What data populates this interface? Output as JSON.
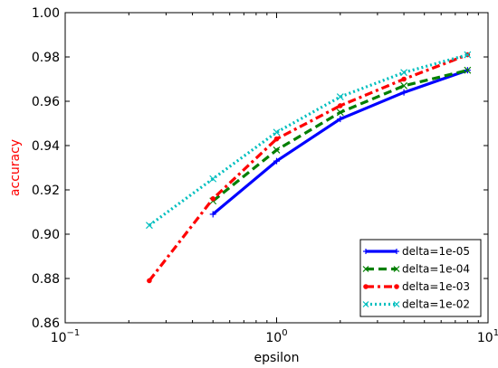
{
  "chart_data": {
    "type": "line",
    "xlabel": "epsilon",
    "ylabel": "accuracy",
    "xscale": "log",
    "xlim": [
      0.1,
      10
    ],
    "ylim": [
      0.86,
      1.0
    ],
    "x_tick_labels": [
      {
        "value": 0.1,
        "base": "10",
        "exp": "−1"
      },
      {
        "value": 1,
        "base": "10",
        "exp": "0"
      },
      {
        "value": 10,
        "base": "10",
        "exp": "1"
      }
    ],
    "y_ticks": [
      0.86,
      0.88,
      0.9,
      0.92,
      0.94,
      0.96,
      0.98,
      1.0
    ],
    "y_tick_labels": [
      "0.86",
      "0.88",
      "0.90",
      "0.92",
      "0.94",
      "0.96",
      "0.98",
      "1.00"
    ],
    "legend_position": "lower-right",
    "grid": false,
    "series": [
      {
        "name": "delta=1e-05",
        "color": "#0000ff",
        "style": "solid",
        "marker": "+",
        "x": [
          0.5,
          1,
          2,
          4,
          8
        ],
        "y": [
          0.909,
          0.933,
          0.952,
          0.964,
          0.974
        ]
      },
      {
        "name": "delta=1e-04",
        "color": "#007f00",
        "style": "dashed",
        "marker": "x",
        "x": [
          0.5,
          1,
          2,
          4,
          8
        ],
        "y": [
          0.915,
          0.938,
          0.955,
          0.967,
          0.974
        ]
      },
      {
        "name": "delta=1e-03",
        "color": "#ff0000",
        "style": "dashdot",
        "marker": "o",
        "x": [
          0.25,
          0.5,
          1,
          2,
          4,
          8
        ],
        "y": [
          0.879,
          0.916,
          0.943,
          0.958,
          0.97,
          0.981
        ]
      },
      {
        "name": "delta=1e-02",
        "color": "#00bfbf",
        "style": "dotted",
        "marker": "x",
        "x": [
          0.25,
          0.5,
          1,
          2,
          4,
          8
        ],
        "y": [
          0.904,
          0.925,
          0.946,
          0.962,
          0.973,
          0.981
        ]
      }
    ]
  }
}
